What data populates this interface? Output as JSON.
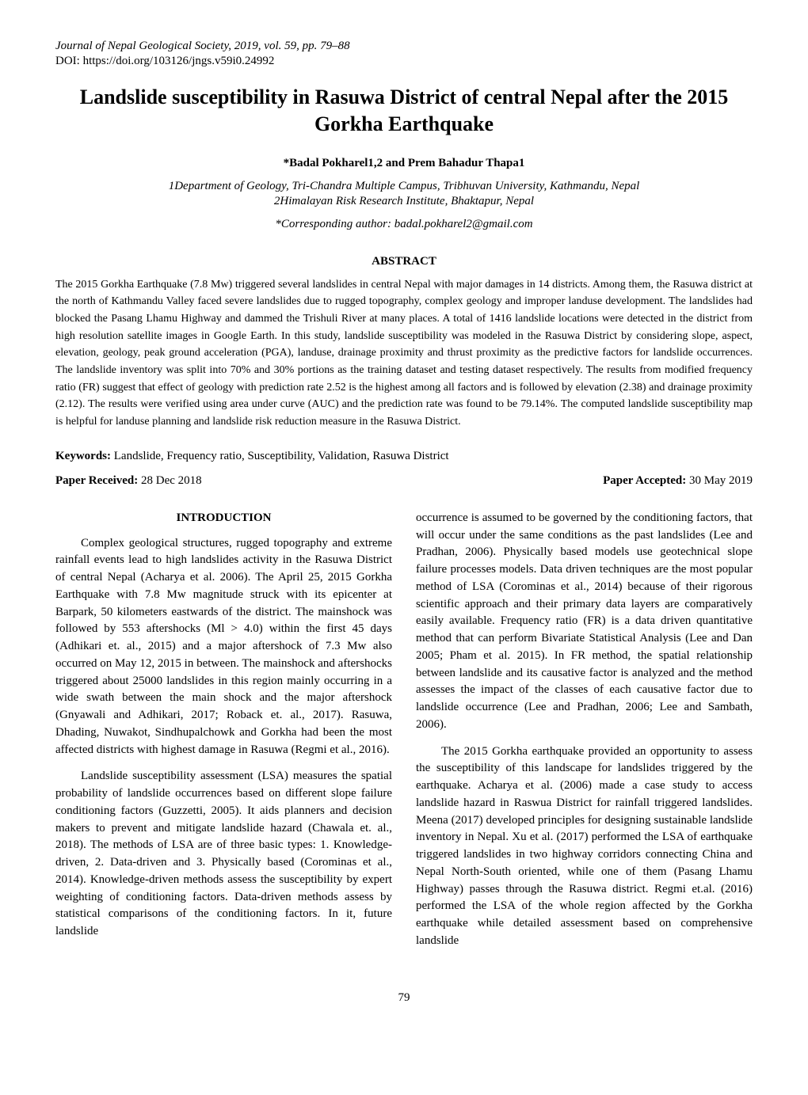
{
  "header": {
    "journal_line": "Journal of Nepal Geological Society, 2019, vol. 59, pp. 79–88",
    "doi_line": "DOI: https://doi.org/103126/jngs.v59i0.24992"
  },
  "title": "Landslide susceptibility in Rasuwa District of central Nepal after the 2015 Gorkha Earthquake",
  "authors": "*Badal Pokharel1,2 and Prem Bahadur Thapa1",
  "affiliations": {
    "aff1": "1Department of Geology, Tri-Chandra Multiple Campus, Tribhuvan University, Kathmandu, Nepal",
    "aff2": "2Himalayan Risk Research Institute, Bhaktapur, Nepal"
  },
  "corresponding": "*Corresponding author: badal.pokharel2@gmail.com",
  "abstract": {
    "heading": "ABSTRACT",
    "text": "The 2015 Gorkha Earthquake (7.8 Mw) triggered several landslides in central Nepal with major damages in 14 districts. Among them, the Rasuwa district at the north of Kathmandu Valley faced severe landslides due to rugged topography, complex geology and improper landuse development. The landslides had blocked the Pasang Lhamu Highway and dammed the Trishuli River at many places. A total of 1416 landslide locations were detected in the district from high resolution satellite images in Google Earth. In this study, landslide susceptibility was modeled in the Rasuwa District by considering slope, aspect, elevation, geology, peak ground acceleration (PGA), landuse, drainage proximity and thrust proximity as the predictive factors for landslide occurrences. The landslide inventory was split into 70% and 30% portions as the training dataset and testing dataset respectively. The results from modified frequency ratio (FR) suggest that effect of geology with prediction rate 2.52 is the highest among all factors and is followed by elevation (2.38) and drainage proximity (2.12). The results were verified using area under curve (AUC) and the prediction rate was found to be 79.14%. The computed landslide susceptibility map is helpful for landuse planning and landslide risk reduction measure in the Rasuwa District."
  },
  "keywords": {
    "label": "Keywords: ",
    "text": "Landslide, Frequency ratio, Susceptibility, Validation, Rasuwa District"
  },
  "dates": {
    "received_label": "Paper Received: ",
    "received_value": "28 Dec 2018",
    "accepted_label": "Paper Accepted: ",
    "accepted_value": "30 May 2019"
  },
  "intro": {
    "heading": "INTRODUCTION",
    "left_p1": "Complex geological structures, rugged topography and extreme rainfall events lead to high landslides activity in the Rasuwa District of central Nepal (Acharya et al. 2006). The April 25, 2015 Gorkha Earthquake with 7.8 Mw magnitude struck with its epicenter at Barpark, 50 kilometers eastwards of the district. The mainshock was followed by 553 aftershocks (Ml > 4.0) within the first 45 days (Adhikari et. al., 2015) and a major aftershock of 7.3 Mw also occurred on May 12, 2015 in between. The mainshock and aftershocks triggered about 25000 landslides in this region mainly occurring in a wide swath between the main shock and the major aftershock (Gnyawali and Adhikari, 2017; Roback et. al., 2017). Rasuwa, Dhading, Nuwakot, Sindhupalchowk and Gorkha had been the most affected districts with highest damage in Rasuwa (Regmi et al., 2016).",
    "left_p2": "Landslide susceptibility assessment (LSA) measures the spatial probability of landslide occurrences based on different slope failure conditioning factors (Guzzetti, 2005). It aids planners and decision makers to prevent and mitigate landslide hazard (Chawala et. al., 2018). The methods of LSA are of three basic types: 1. Knowledge-driven, 2. Data-driven and 3. Physically based (Corominas et al., 2014). Knowledge-driven methods assess the susceptibility by expert weighting of conditioning factors. Data-driven methods assess by statistical comparisons of the conditioning factors. In it, future landslide",
    "right_p1": "occurrence is assumed to be governed by the conditioning factors, that will occur under the same conditions as the past landslides (Lee and Pradhan, 2006). Physically based models use geotechnical slope failure processes models. Data driven techniques are the most popular method of LSA (Corominas et al., 2014) because of their rigorous scientific approach and their primary data layers are comparatively easily available. Frequency ratio (FR) is a data driven quantitative method that can perform Bivariate Statistical Analysis (Lee and Dan 2005; Pham et al. 2015). In FR method, the spatial relationship between landslide and its causative factor is analyzed and the method assesses the impact of the classes of each causative factor due to landslide occurrence (Lee and Pradhan, 2006; Lee and Sambath, 2006).",
    "right_p2": "The 2015 Gorkha earthquake provided an opportunity to assess the susceptibility of this landscape for landslides triggered by the earthquake. Acharya et al. (2006) made a case study to access landslide hazard in Raswua District for rainfall triggered landslides. Meena (2017) developed principles for designing sustainable landslide inventory in Nepal. Xu et al. (2017) performed the LSA of earthquake triggered landslides in two highway corridors connecting China and Nepal North-South oriented, while one of them (Pasang Lhamu Highway) passes through the Rasuwa district. Regmi et.al. (2016) performed the LSA of the whole region affected by the Gorkha earthquake while detailed assessment based on comprehensive landslide"
  },
  "page_number": "79",
  "style": {
    "background": "#ffffff",
    "text_color": "#000000",
    "title_fontsize": 26,
    "body_fontsize": 15,
    "abstract_fontsize": 14
  }
}
